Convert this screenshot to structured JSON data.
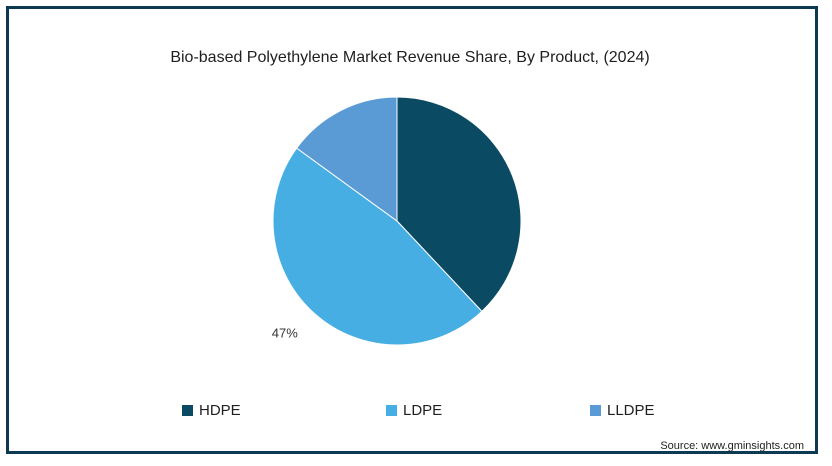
{
  "chart_data": {
    "type": "pie",
    "title": "Bio-based Polyethylene Market Revenue Share, By Product, (2024)",
    "categories": [
      "HDPE",
      "LDPE",
      "LLDPE"
    ],
    "values": [
      38,
      47,
      15
    ],
    "colors": [
      "#0b4a63",
      "#46aee3",
      "#5b9bd5"
    ],
    "data_labels": [
      "",
      "47%",
      ""
    ],
    "legend": {
      "position": "bottom",
      "entries": [
        "HDPE",
        "LDPE",
        "LLDPE"
      ]
    }
  },
  "source": "Source: www.gminsights.com"
}
